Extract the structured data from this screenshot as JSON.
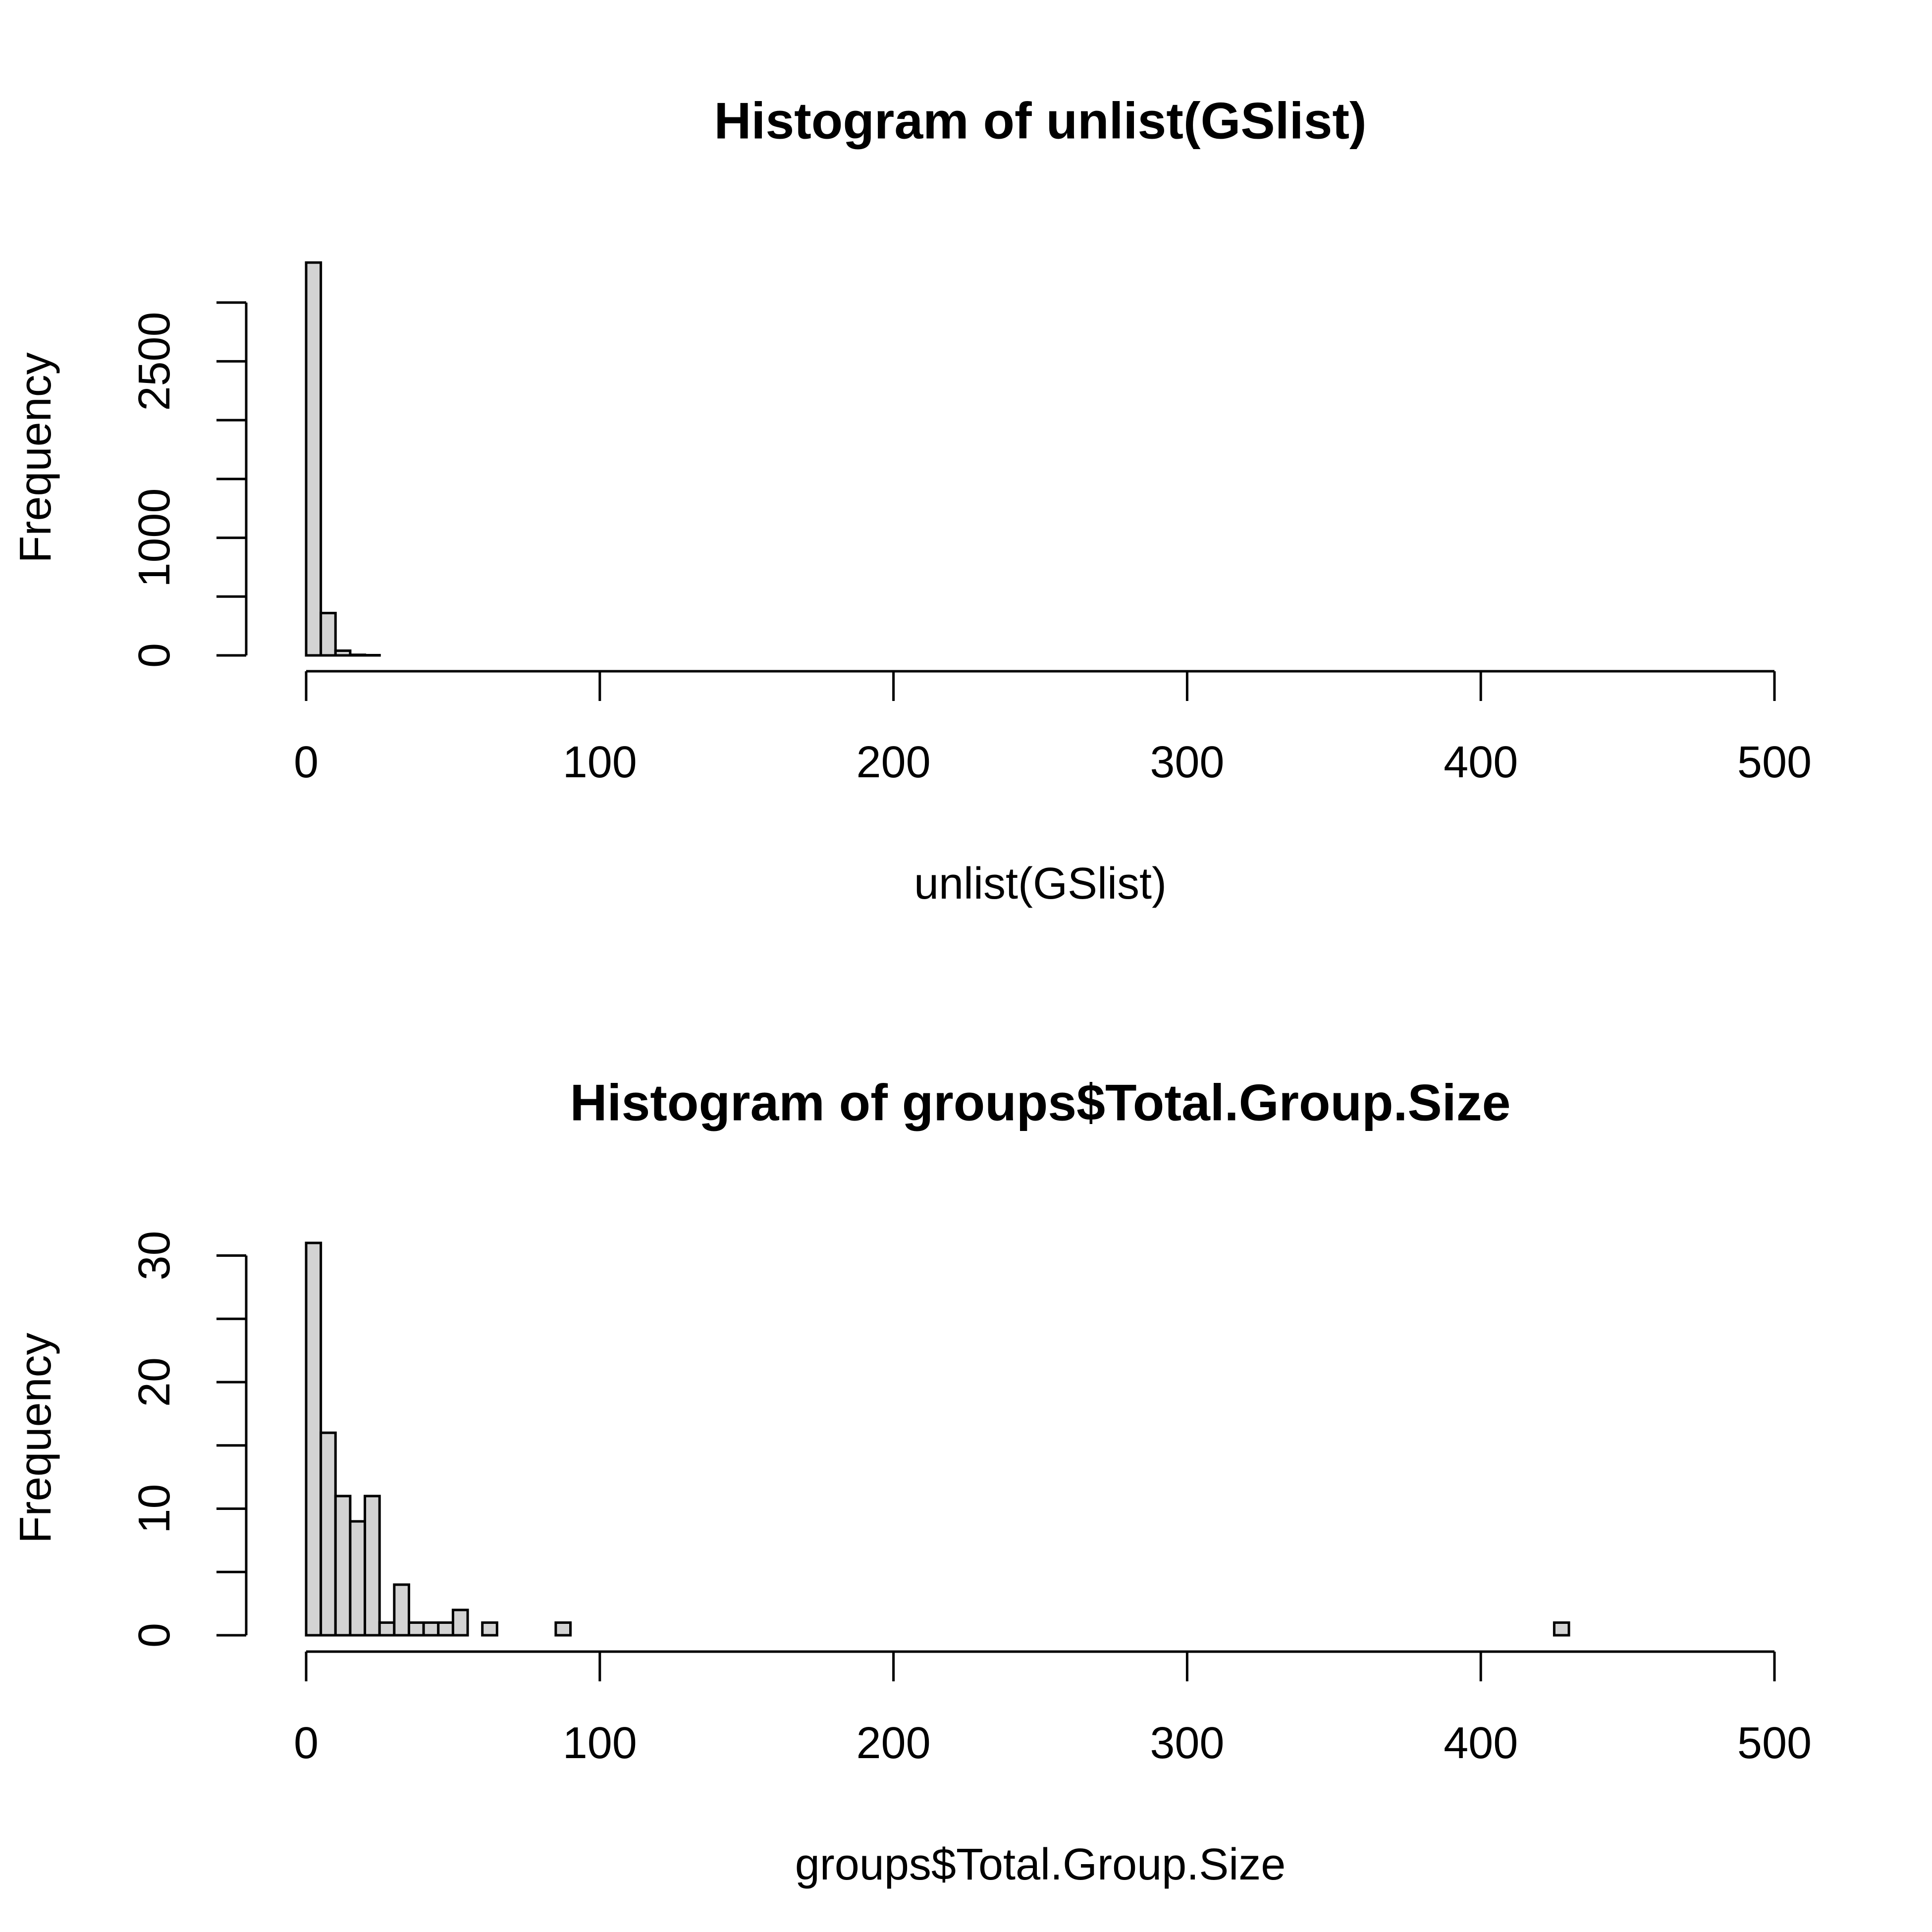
{
  "chart_data": [
    {
      "type": "histogram",
      "title": "Histogram of unlist(GSlist)",
      "xlabel": "unlist(GSlist)",
      "ylabel": "Frequency",
      "bins": [
        0,
        5,
        10,
        15,
        20,
        25,
        30,
        35,
        40,
        45,
        50,
        55,
        60,
        65,
        70,
        75,
        80,
        85,
        90,
        95,
        100,
        105,
        110,
        115,
        120,
        125,
        130,
        135,
        140,
        145,
        150,
        155,
        160,
        165,
        170,
        175,
        180,
        185,
        190,
        195,
        200,
        205,
        210,
        215,
        220,
        225,
        230,
        235,
        240,
        245,
        250,
        255,
        260,
        265,
        270,
        275,
        280,
        285,
        290,
        295,
        300,
        305,
        310,
        315,
        320,
        325,
        330,
        335,
        340,
        345,
        350,
        355,
        360,
        365,
        370,
        375,
        380,
        385,
        390,
        395,
        400,
        405,
        410,
        415,
        420,
        425,
        430,
        435,
        440,
        445,
        450,
        455,
        460,
        465,
        470,
        475,
        480,
        485,
        490,
        495,
        500
      ],
      "counts": [
        3340,
        360,
        40,
        5,
        2,
        0,
        0,
        0,
        0,
        0,
        0,
        0,
        0,
        0,
        0,
        0,
        0,
        0,
        0,
        0,
        0,
        0,
        0,
        0,
        0,
        0,
        0,
        0,
        0,
        0,
        0,
        0,
        0,
        0,
        0,
        0,
        0,
        0,
        0,
        0,
        0,
        0,
        0,
        0,
        0,
        0,
        0,
        0,
        0,
        0,
        0,
        0,
        0,
        0,
        0,
        0,
        0,
        0,
        0,
        0,
        0,
        0,
        0,
        0,
        0,
        0,
        0,
        0,
        0,
        0,
        0,
        0,
        0,
        0,
        0,
        0,
        0,
        0,
        0,
        0,
        0,
        0,
        0,
        0,
        0,
        0,
        0,
        0,
        0,
        0,
        0,
        0,
        0,
        0,
        0,
        0,
        0,
        0,
        0,
        0
      ],
      "color": "#d3d3d3",
      "xlim": [
        0,
        500
      ],
      "xticks": [
        0,
        100,
        200,
        300,
        400,
        500
      ],
      "ylim": [
        0,
        3340
      ],
      "yticks": [
        0,
        1000,
        2500
      ],
      "yminorticks": [
        500,
        1500,
        2000,
        3000
      ]
    },
    {
      "type": "histogram",
      "title": "Histogram of groups$Total.Group.Size",
      "xlabel": "groups$Total.Group.Size",
      "ylabel": "Frequency",
      "bins": [
        0,
        5,
        10,
        15,
        20,
        25,
        30,
        35,
        40,
        45,
        50,
        55,
        60,
        65,
        70,
        75,
        80,
        85,
        90,
        95,
        100,
        105,
        110,
        115,
        120,
        125,
        130,
        135,
        140,
        145,
        150,
        155,
        160,
        165,
        170,
        175,
        180,
        185,
        190,
        195,
        200,
        205,
        210,
        215,
        220,
        225,
        230,
        235,
        240,
        245,
        250,
        255,
        260,
        265,
        270,
        275,
        280,
        285,
        290,
        295,
        300,
        305,
        310,
        315,
        320,
        325,
        330,
        335,
        340,
        345,
        350,
        355,
        360,
        365,
        370,
        375,
        380,
        385,
        390,
        395,
        400,
        405,
        410,
        415,
        420,
        425,
        430,
        435,
        440,
        445,
        450,
        455,
        460,
        465,
        470,
        475,
        480,
        485,
        490,
        495,
        500
      ],
      "counts": [
        31,
        16,
        11,
        9,
        11,
        1,
        4,
        1,
        1,
        1,
        2,
        0,
        1,
        0,
        0,
        0,
        0,
        1,
        0,
        0,
        0,
        0,
        0,
        0,
        0,
        0,
        0,
        0,
        0,
        0,
        0,
        0,
        0,
        0,
        0,
        0,
        0,
        0,
        0,
        0,
        0,
        0,
        0,
        0,
        0,
        0,
        0,
        0,
        0,
        0,
        0,
        0,
        0,
        0,
        0,
        0,
        0,
        0,
        0,
        0,
        0,
        0,
        0,
        0,
        0,
        0,
        0,
        0,
        0,
        0,
        0,
        0,
        0,
        0,
        0,
        0,
        0,
        0,
        0,
        0,
        0,
        0,
        0,
        0,
        0,
        1,
        0,
        0,
        0,
        0,
        0,
        0,
        0,
        0,
        0,
        0,
        0,
        0,
        0,
        0
      ],
      "color": "#d3d3d3",
      "xlim": [
        0,
        500
      ],
      "xticks": [
        0,
        100,
        200,
        300,
        400,
        500
      ],
      "ylim": [
        0,
        31
      ],
      "yticks": [
        0,
        10,
        20,
        30
      ],
      "yminorticks": [
        5,
        15,
        25
      ]
    }
  ]
}
